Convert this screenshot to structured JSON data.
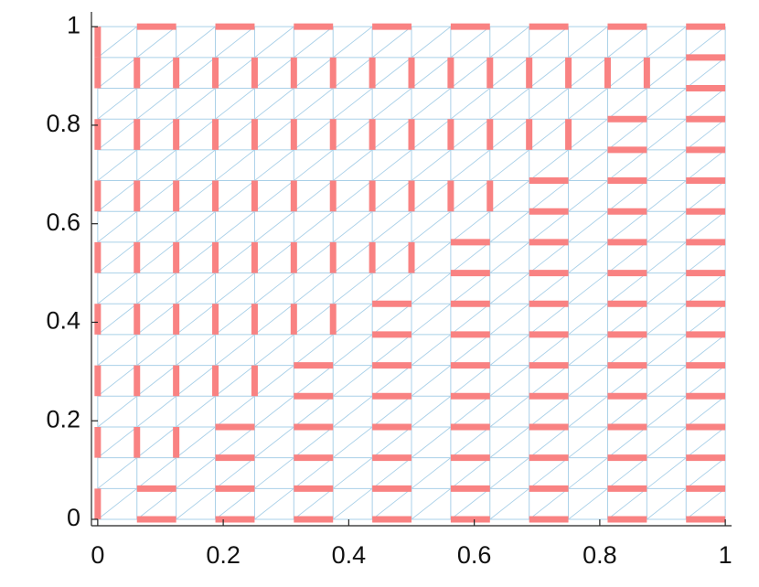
{
  "chart_data": {
    "type": "mesh-edges",
    "xlim": [
      -0.01,
      1.01
    ],
    "ylim": [
      -0.013,
      1.03
    ],
    "xticks": [
      0,
      0.2,
      0.4,
      0.6,
      0.8,
      1
    ],
    "yticks": [
      0,
      0.2,
      0.4,
      0.6,
      0.8,
      1
    ],
    "mesh_color": "#a9d0e8",
    "edge_color": "#f98282",
    "mesh_x": [
      0,
      0.0625,
      0.125,
      0.1875,
      0.25,
      0.3125,
      0.375,
      0.4375,
      0.5,
      0.5625,
      0.625,
      0.6875,
      0.75,
      0.8125,
      0.875,
      0.9375,
      1
    ],
    "mesh_y": [
      0,
      0.0625,
      0.125,
      0.1875,
      0.25,
      0.3125,
      0.375,
      0.4375,
      0.5,
      0.5625,
      0.625,
      0.6875,
      0.75,
      0.8125,
      0.875,
      0.9375,
      1
    ],
    "horizontal_edges": [
      {
        "y": 0,
        "x_pairs": [
          [
            0.0625,
            0.125
          ],
          [
            0.1875,
            0.25
          ],
          [
            0.3125,
            0.375
          ],
          [
            0.4375,
            0.5
          ],
          [
            0.5625,
            0.625
          ],
          [
            0.6875,
            0.75
          ],
          [
            0.8125,
            0.875
          ],
          [
            0.9375,
            1
          ]
        ]
      },
      {
        "y": 0.0625,
        "x_pairs": [
          [
            0.0625,
            0.125
          ],
          [
            0.1875,
            0.25
          ],
          [
            0.3125,
            0.375
          ],
          [
            0.4375,
            0.5
          ],
          [
            0.5625,
            0.625
          ],
          [
            0.6875,
            0.75
          ],
          [
            0.8125,
            0.875
          ],
          [
            0.9375,
            1
          ]
        ]
      },
      {
        "y": 0.125,
        "x_pairs": [
          [
            0.1875,
            0.25
          ],
          [
            0.3125,
            0.375
          ],
          [
            0.4375,
            0.5
          ],
          [
            0.5625,
            0.625
          ],
          [
            0.6875,
            0.75
          ],
          [
            0.8125,
            0.875
          ],
          [
            0.9375,
            1
          ]
        ]
      },
      {
        "y": 0.1875,
        "x_pairs": [
          [
            0.1875,
            0.25
          ],
          [
            0.3125,
            0.375
          ],
          [
            0.4375,
            0.5
          ],
          [
            0.5625,
            0.625
          ],
          [
            0.6875,
            0.75
          ],
          [
            0.8125,
            0.875
          ],
          [
            0.9375,
            1
          ]
        ]
      },
      {
        "y": 0.25,
        "x_pairs": [
          [
            0.3125,
            0.375
          ],
          [
            0.4375,
            0.5
          ],
          [
            0.5625,
            0.625
          ],
          [
            0.6875,
            0.75
          ],
          [
            0.8125,
            0.875
          ],
          [
            0.9375,
            1
          ]
        ]
      },
      {
        "y": 0.3125,
        "x_pairs": [
          [
            0.3125,
            0.375
          ],
          [
            0.4375,
            0.5
          ],
          [
            0.5625,
            0.625
          ],
          [
            0.6875,
            0.75
          ],
          [
            0.8125,
            0.875
          ],
          [
            0.9375,
            1
          ]
        ]
      },
      {
        "y": 0.375,
        "x_pairs": [
          [
            0.4375,
            0.5
          ],
          [
            0.5625,
            0.625
          ],
          [
            0.6875,
            0.75
          ],
          [
            0.8125,
            0.875
          ],
          [
            0.9375,
            1
          ]
        ]
      },
      {
        "y": 0.4375,
        "x_pairs": [
          [
            0.4375,
            0.5
          ],
          [
            0.5625,
            0.625
          ],
          [
            0.6875,
            0.75
          ],
          [
            0.8125,
            0.875
          ],
          [
            0.9375,
            1
          ]
        ]
      },
      {
        "y": 0.5,
        "x_pairs": [
          [
            0.5625,
            0.625
          ],
          [
            0.6875,
            0.75
          ],
          [
            0.8125,
            0.875
          ],
          [
            0.9375,
            1
          ]
        ]
      },
      {
        "y": 0.5625,
        "x_pairs": [
          [
            0.5625,
            0.625
          ],
          [
            0.6875,
            0.75
          ],
          [
            0.8125,
            0.875
          ],
          [
            0.9375,
            1
          ]
        ]
      },
      {
        "y": 0.625,
        "x_pairs": [
          [
            0.6875,
            0.75
          ],
          [
            0.8125,
            0.875
          ],
          [
            0.9375,
            1
          ]
        ]
      },
      {
        "y": 0.6875,
        "x_pairs": [
          [
            0.6875,
            0.75
          ],
          [
            0.8125,
            0.875
          ],
          [
            0.9375,
            1
          ]
        ]
      },
      {
        "y": 0.75,
        "x_pairs": [
          [
            0.8125,
            0.875
          ],
          [
            0.9375,
            1
          ]
        ]
      },
      {
        "y": 0.8125,
        "x_pairs": [
          [
            0.8125,
            0.875
          ],
          [
            0.9375,
            1
          ]
        ]
      },
      {
        "y": 0.875,
        "x_pairs": [
          [
            0.9375,
            1
          ]
        ]
      },
      {
        "y": 0.9375,
        "x_pairs": [
          [
            0.9375,
            1
          ]
        ]
      },
      {
        "y": 1,
        "x_pairs": [
          [
            0.0625,
            0.125
          ],
          [
            0.1875,
            0.25
          ],
          [
            0.3125,
            0.375
          ],
          [
            0.4375,
            0.5
          ],
          [
            0.5625,
            0.625
          ],
          [
            0.6875,
            0.75
          ],
          [
            0.8125,
            0.875
          ],
          [
            0.9375,
            1
          ]
        ]
      }
    ],
    "vertical_edges": [
      {
        "x": 0,
        "y_pairs": [
          [
            0,
            0.0625
          ],
          [
            0.125,
            0.1875
          ],
          [
            0.25,
            0.3125
          ],
          [
            0.375,
            0.4375
          ],
          [
            0.5,
            0.5625
          ],
          [
            0.625,
            0.6875
          ],
          [
            0.75,
            0.8125
          ],
          [
            0.875,
            0.9375
          ],
          [
            0.9375,
            1
          ]
        ]
      },
      {
        "x": 0.0625,
        "y_pairs": [
          [
            0.125,
            0.1875
          ],
          [
            0.25,
            0.3125
          ],
          [
            0.375,
            0.4375
          ],
          [
            0.5,
            0.5625
          ],
          [
            0.625,
            0.6875
          ],
          [
            0.75,
            0.8125
          ],
          [
            0.875,
            0.9375
          ]
        ]
      },
      {
        "x": 0.125,
        "y_pairs": [
          [
            0.125,
            0.1875
          ],
          [
            0.25,
            0.3125
          ],
          [
            0.375,
            0.4375
          ],
          [
            0.5,
            0.5625
          ],
          [
            0.625,
            0.6875
          ],
          [
            0.75,
            0.8125
          ],
          [
            0.875,
            0.9375
          ]
        ]
      },
      {
        "x": 0.1875,
        "y_pairs": [
          [
            0.25,
            0.3125
          ],
          [
            0.375,
            0.4375
          ],
          [
            0.5,
            0.5625
          ],
          [
            0.625,
            0.6875
          ],
          [
            0.75,
            0.8125
          ],
          [
            0.875,
            0.9375
          ]
        ]
      },
      {
        "x": 0.25,
        "y_pairs": [
          [
            0.25,
            0.3125
          ],
          [
            0.375,
            0.4375
          ],
          [
            0.5,
            0.5625
          ],
          [
            0.625,
            0.6875
          ],
          [
            0.75,
            0.8125
          ],
          [
            0.875,
            0.9375
          ]
        ]
      },
      {
        "x": 0.3125,
        "y_pairs": [
          [
            0.375,
            0.4375
          ],
          [
            0.5,
            0.5625
          ],
          [
            0.625,
            0.6875
          ],
          [
            0.75,
            0.8125
          ],
          [
            0.875,
            0.9375
          ]
        ]
      },
      {
        "x": 0.375,
        "y_pairs": [
          [
            0.375,
            0.4375
          ],
          [
            0.5,
            0.5625
          ],
          [
            0.625,
            0.6875
          ],
          [
            0.75,
            0.8125
          ],
          [
            0.875,
            0.9375
          ]
        ]
      },
      {
        "x": 0.4375,
        "y_pairs": [
          [
            0.5,
            0.5625
          ],
          [
            0.625,
            0.6875
          ],
          [
            0.75,
            0.8125
          ],
          [
            0.875,
            0.9375
          ]
        ]
      },
      {
        "x": 0.5,
        "y_pairs": [
          [
            0.5,
            0.5625
          ],
          [
            0.625,
            0.6875
          ],
          [
            0.75,
            0.8125
          ],
          [
            0.875,
            0.9375
          ]
        ]
      },
      {
        "x": 0.5625,
        "y_pairs": [
          [
            0.625,
            0.6875
          ],
          [
            0.75,
            0.8125
          ],
          [
            0.875,
            0.9375
          ]
        ]
      },
      {
        "x": 0.625,
        "y_pairs": [
          [
            0.625,
            0.6875
          ],
          [
            0.75,
            0.8125
          ],
          [
            0.875,
            0.9375
          ]
        ]
      },
      {
        "x": 0.6875,
        "y_pairs": [
          [
            0.75,
            0.8125
          ],
          [
            0.875,
            0.9375
          ]
        ]
      },
      {
        "x": 0.75,
        "y_pairs": [
          [
            0.75,
            0.8125
          ],
          [
            0.875,
            0.9375
          ]
        ]
      },
      {
        "x": 0.8125,
        "y_pairs": [
          [
            0.875,
            0.9375
          ]
        ]
      },
      {
        "x": 0.875,
        "y_pairs": [
          [
            0.875,
            0.9375
          ]
        ]
      }
    ]
  }
}
